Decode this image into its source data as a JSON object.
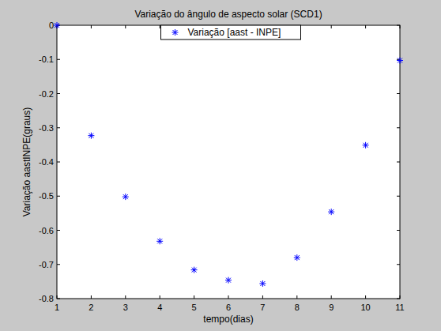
{
  "chart_data": {
    "type": "scatter",
    "title": "Variação do ângulo de aspecto solar (SCD1)",
    "x_label": "tempo(dias)",
    "y_label": "Variação aastINPE(graus)",
    "x": [
      1,
      2,
      3,
      4,
      5,
      6,
      7,
      8,
      9,
      10,
      11
    ],
    "series": [
      {
        "name": "Variação [aast - INPE]",
        "color": "#0000ff",
        "marker": "asterisk",
        "values": [
          0,
          -0.323,
          -0.502,
          -0.632,
          -0.716,
          -0.746,
          -0.756,
          -0.68,
          -0.546,
          -0.351,
          -0.103
        ]
      }
    ],
    "xlim": [
      1,
      11
    ],
    "ylim": [
      -0.8,
      0
    ],
    "xticks": [
      1,
      2,
      3,
      4,
      5,
      6,
      7,
      8,
      9,
      10,
      11
    ],
    "yticks": [
      -0.8,
      -0.7,
      -0.6,
      -0.5,
      -0.4,
      -0.3,
      -0.2,
      -0.1,
      0
    ],
    "grid": false,
    "legend": "top"
  }
}
